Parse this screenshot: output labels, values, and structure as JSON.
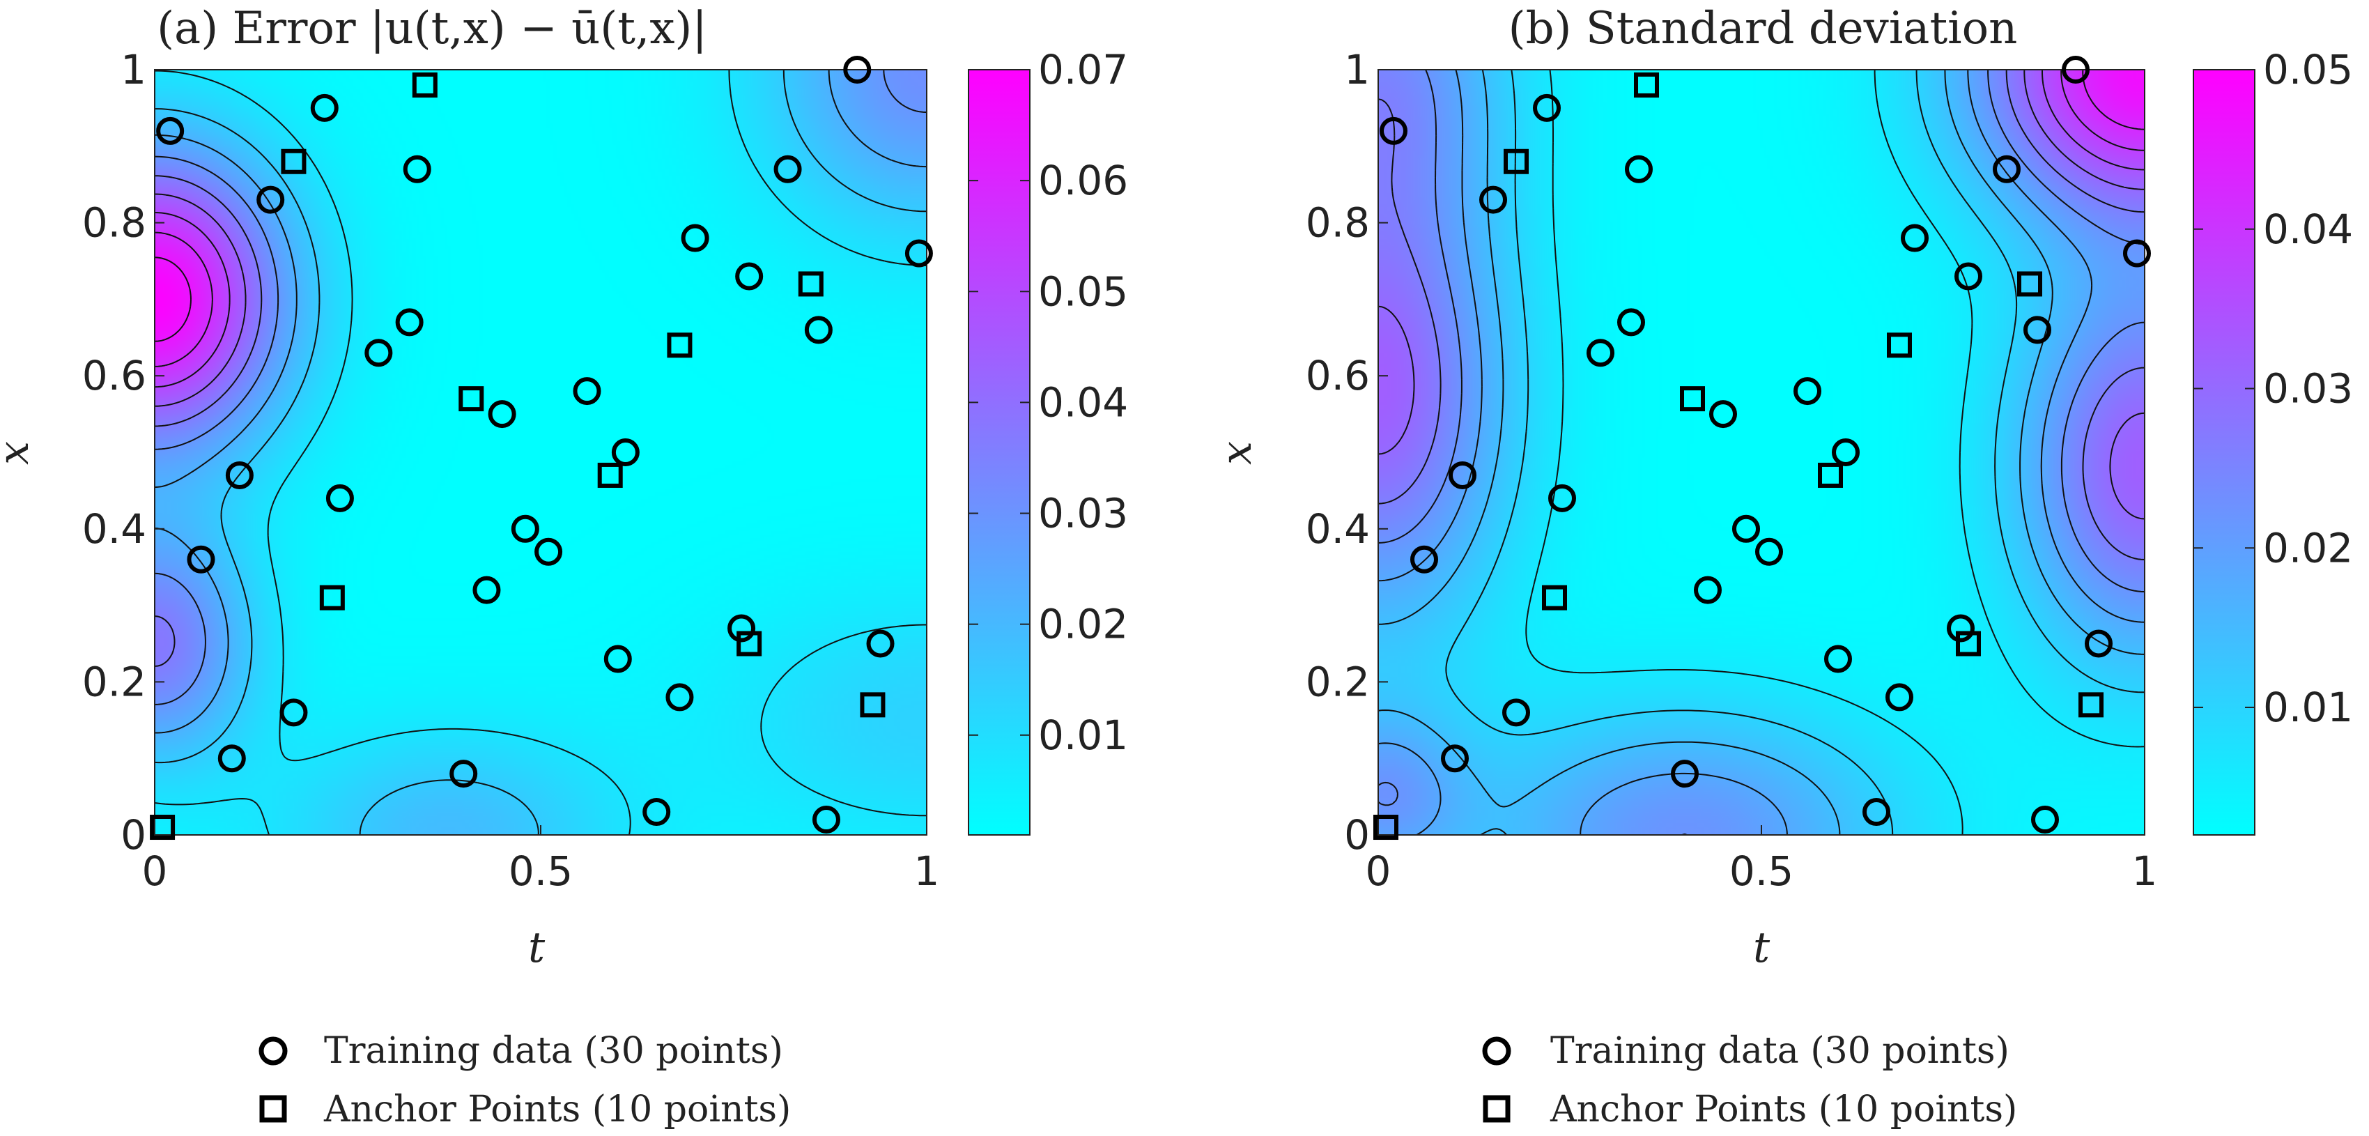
{
  "chart_data": [
    {
      "type": "contour",
      "title": "(a) Error |u(t,x) − ū(t,x)|",
      "xlabel": "t",
      "ylabel": "x",
      "xlim": [
        0,
        1
      ],
      "ylim": [
        0,
        1
      ],
      "xticks": [
        "0",
        "0.5",
        "1"
      ],
      "yticks": [
        "0",
        "0.2",
        "0.4",
        "0.6",
        "0.8",
        "1"
      ],
      "colorbar": {
        "min": 0.001,
        "max": 0.07,
        "ticks": [
          "0.01",
          "0.02",
          "0.03",
          "0.04",
          "0.05",
          "0.06",
          "0.07"
        ],
        "tick_values": [
          0.01,
          0.02,
          0.03,
          0.04,
          0.05,
          0.06,
          0.07
        ],
        "colormap": [
          "#00ffff",
          "#ff00ff"
        ]
      },
      "field": [
        {
          "t": 0.0,
          "x": 0.7,
          "amp": 0.068,
          "st": 0.12,
          "sx": 0.14
        },
        {
          "t": 0.0,
          "x": 0.25,
          "amp": 0.036,
          "st": 0.09,
          "sx": 0.11
        },
        {
          "t": 1.0,
          "x": 1.0,
          "amp": 0.03,
          "st": 0.15,
          "sx": 0.15
        },
        {
          "t": 0.38,
          "x": 0.0,
          "amp": 0.018,
          "st": 0.16,
          "sx": 0.1
        },
        {
          "t": 1.0,
          "x": 0.15,
          "amp": 0.012,
          "st": 0.2,
          "sx": 0.12
        }
      ],
      "contour_levels": [
        0.008,
        0.015,
        0.022,
        0.029,
        0.036,
        0.043,
        0.05,
        0.057,
        0.064
      ],
      "legend": [
        {
          "marker": "circle",
          "label": "Training data (30 points)"
        },
        {
          "marker": "square",
          "label": "Anchor Points (10 points)"
        }
      ]
    },
    {
      "type": "contour",
      "title": "(b) Standard deviation",
      "xlabel": "t",
      "ylabel": "x",
      "xlim": [
        0,
        1
      ],
      "ylim": [
        0,
        1
      ],
      "xticks": [
        "0",
        "0.5",
        "1"
      ],
      "yticks": [
        "0",
        "0.2",
        "0.4",
        "0.6",
        "0.8",
        "1"
      ],
      "colorbar": {
        "min": 0.002,
        "max": 0.05,
        "ticks": [
          "0.01",
          "0.02",
          "0.03",
          "0.04",
          "0.05"
        ],
        "tick_values": [
          0.01,
          0.02,
          0.03,
          0.04,
          0.05
        ],
        "colormap": [
          "#00ffff",
          "#ff00ff"
        ]
      },
      "field": [
        {
          "t": 0.0,
          "x": 0.58,
          "amp": 0.03,
          "st": 0.12,
          "sx": 0.22
        },
        {
          "t": 1.0,
          "x": 0.48,
          "amp": 0.03,
          "st": 0.12,
          "sx": 0.18
        },
        {
          "t": 1.0,
          "x": 1.0,
          "amp": 0.045,
          "st": 0.16,
          "sx": 0.14
        },
        {
          "t": 0.0,
          "x": 1.0,
          "amp": 0.018,
          "st": 0.12,
          "sx": 0.14
        },
        {
          "t": 0.4,
          "x": 0.0,
          "amp": 0.02,
          "st": 0.2,
          "sx": 0.12
        },
        {
          "t": 0.0,
          "x": 0.05,
          "amp": 0.016,
          "st": 0.08,
          "sx": 0.08
        }
      ],
      "contour_levels": [
        0.006,
        0.01,
        0.014,
        0.018,
        0.022,
        0.026,
        0.03,
        0.034,
        0.038,
        0.042
      ],
      "legend": [
        {
          "marker": "circle",
          "label": "Training data (30 points)"
        },
        {
          "marker": "square",
          "label": "Anchor Points (10 points)"
        }
      ]
    }
  ],
  "training_points": [
    [
      0.02,
      0.92
    ],
    [
      0.22,
      0.95
    ],
    [
      0.34,
      0.87
    ],
    [
      0.15,
      0.83
    ],
    [
      0.91,
      1.0
    ],
    [
      0.82,
      0.87
    ],
    [
      0.7,
      0.78
    ],
    [
      0.99,
      0.76
    ],
    [
      0.77,
      0.73
    ],
    [
      0.86,
      0.66
    ],
    [
      0.33,
      0.67
    ],
    [
      0.29,
      0.63
    ],
    [
      0.56,
      0.58
    ],
    [
      0.45,
      0.55
    ],
    [
      0.61,
      0.5
    ],
    [
      0.11,
      0.47
    ],
    [
      0.24,
      0.44
    ],
    [
      0.48,
      0.4
    ],
    [
      0.51,
      0.37
    ],
    [
      0.06,
      0.36
    ],
    [
      0.43,
      0.32
    ],
    [
      0.76,
      0.27
    ],
    [
      0.94,
      0.25
    ],
    [
      0.6,
      0.23
    ],
    [
      0.68,
      0.18
    ],
    [
      0.18,
      0.16
    ],
    [
      0.1,
      0.1
    ],
    [
      0.4,
      0.08
    ],
    [
      0.65,
      0.03
    ],
    [
      0.87,
      0.02
    ]
  ],
  "anchor_points": [
    [
      0.35,
      0.98
    ],
    [
      0.18,
      0.88
    ],
    [
      0.85,
      0.72
    ],
    [
      0.68,
      0.64
    ],
    [
      0.41,
      0.57
    ],
    [
      0.59,
      0.47
    ],
    [
      0.23,
      0.31
    ],
    [
      0.77,
      0.25
    ],
    [
      0.93,
      0.17
    ],
    [
      0.01,
      0.01
    ]
  ]
}
